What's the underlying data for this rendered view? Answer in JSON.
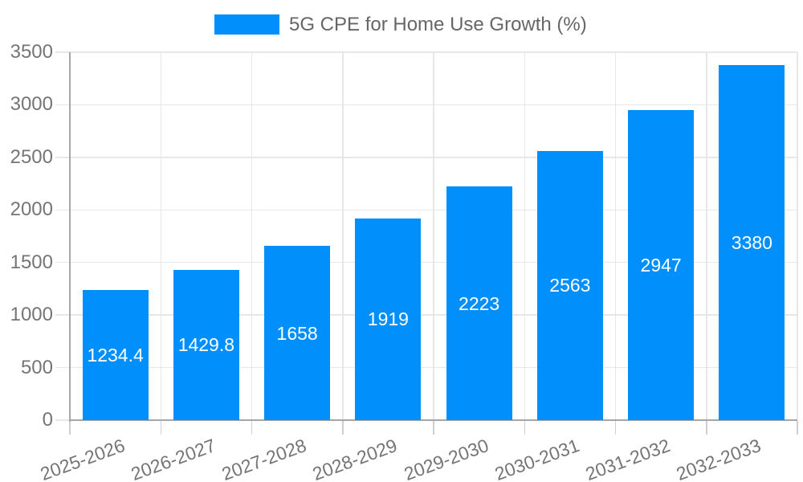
{
  "legend": {
    "label": "5G CPE for Home Use Growth (%)"
  },
  "chart_data": {
    "type": "bar",
    "title": "5G CPE for Home Use Growth (%)",
    "categories": [
      "2025-2026",
      "2026-2027",
      "2027-2028",
      "2028-2029",
      "2029-2030",
      "2030-2031",
      "2031-2032",
      "2032-2033"
    ],
    "values": [
      1234.4,
      1429.8,
      1658,
      1919,
      2223,
      2563,
      2947,
      3380
    ],
    "value_labels": [
      "1234.4",
      "1429.8",
      "1658",
      "1919",
      "2223",
      "2563",
      "2947",
      "3380"
    ],
    "xlabel": "",
    "ylabel": "",
    "ylim": [
      0,
      3500
    ],
    "yticks": [
      0,
      500,
      1000,
      1500,
      2000,
      2500,
      3000,
      3500
    ],
    "grid": true,
    "legend_position": "top-center",
    "bar_label_position": "center"
  },
  "colors": {
    "bar": "#008FFB",
    "bar_label": "#FFFFFF",
    "grid_line": "#E7E7E7",
    "axis_line": "#A6A6A6",
    "tick_mark": "#CFCFCF",
    "axis_text": "#757575",
    "legend_text": "#666666"
  }
}
